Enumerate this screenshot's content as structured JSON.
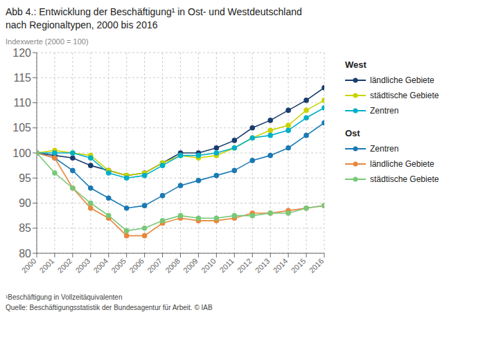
{
  "chart_data": {
    "type": "line",
    "title": [
      "Abb 4.: Entwicklung der Beschäftigung¹ in Ost- und Westdeutschland",
      "nach Regionaltypen, 2000 bis 2016"
    ],
    "subtitle": "Indexwerte (2000 = 100)",
    "annotations": [
      "¹Beschäftigung in Vollzeitäquivalenten",
      "Quelle: Beschäftigungsstatistik der Bundesagentur für Arbeit. © IAB"
    ],
    "x": [
      2000,
      2001,
      2002,
      2003,
      2004,
      2005,
      2006,
      2007,
      2008,
      2009,
      2010,
      2011,
      2012,
      2013,
      2014,
      2015,
      2016
    ],
    "xlim": [
      2000,
      2016
    ],
    "xticks": [
      2000,
      2001,
      2002,
      2003,
      2004,
      2005,
      2006,
      2007,
      2008,
      2009,
      2010,
      2011,
      2012,
      2013,
      2014,
      2015,
      2016
    ],
    "ylim": [
      80,
      120
    ],
    "yticks": [
      80,
      85,
      90,
      95,
      100,
      105,
      110,
      115,
      120
    ],
    "grid": true,
    "legend": "right",
    "marker": "circle",
    "series": [
      {
        "name": "ländliche Gebiete",
        "group": "West",
        "color": "#1a3c6e",
        "values": [
          100,
          99.5,
          99,
          97.5,
          96.5,
          95.5,
          96,
          98,
          100,
          100,
          101,
          102.5,
          105,
          106.5,
          108.5,
          110.5,
          113
        ]
      },
      {
        "name": "städtische Gebiete",
        "group": "West",
        "color": "#c8d400",
        "values": [
          100,
          100.5,
          100,
          99.5,
          96.5,
          95.5,
          96,
          98,
          99.5,
          99,
          99.5,
          101,
          103,
          104.5,
          105.5,
          108.5,
          110.5
        ]
      },
      {
        "name": "Zentren",
        "group": "West",
        "color": "#00b0c8",
        "values": [
          100,
          100,
          100,
          99,
          96,
          95,
          95.5,
          97.5,
          99.5,
          99.5,
          100,
          101,
          103,
          103.5,
          104.5,
          107,
          109
        ]
      },
      {
        "name": "Zentren",
        "group": "Ost",
        "color": "#1a7ab4",
        "values": [
          100,
          99,
          96.5,
          93,
          91,
          89,
          89.5,
          91.5,
          93.5,
          94.5,
          95.5,
          96.5,
          98.5,
          99.5,
          101,
          103.5,
          106
        ]
      },
      {
        "name": "ländliche Gebiete",
        "group": "Ost",
        "color": "#e8873c",
        "values": [
          100,
          99,
          93,
          89,
          87,
          83.5,
          83.5,
          86,
          87,
          86.5,
          86.5,
          87,
          88,
          88,
          88.5,
          89,
          89.5
        ]
      },
      {
        "name": "städtische Gebiete",
        "group": "Ost",
        "color": "#78c878",
        "values": [
          100,
          96,
          93,
          90,
          87.5,
          84.5,
          85,
          86.5,
          87.5,
          87,
          87,
          87.5,
          87.5,
          88,
          88,
          89,
          89.5
        ]
      }
    ]
  }
}
